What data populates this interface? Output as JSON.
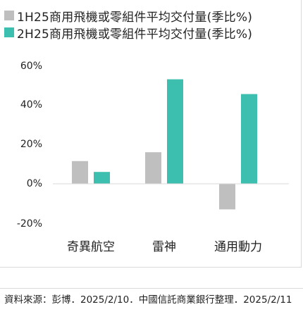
{
  "legend": [
    {
      "label": "1H25商用飛機或零組件平均交付量(季比%)",
      "color": "#BFBFBF"
    },
    {
      "label": "2H25商用飛機或零組件平均交付量(季比%)",
      "color": "#3CBFAE"
    }
  ],
  "chart_data": {
    "type": "bar",
    "categories": [
      "奇異航空",
      "雷神",
      "通用動力"
    ],
    "series": [
      {
        "name": "1H25商用飛機或零組件平均交付量(季比%)",
        "values": [
          11.5,
          16,
          -13
        ],
        "color": "#BFBFBF"
      },
      {
        "name": "2H25商用飛機或零組件平均交付量(季比%)",
        "values": [
          6,
          53,
          45.5
        ],
        "color": "#3CBFAE"
      }
    ],
    "y_ticks": [
      "60%",
      "40%",
      "20%",
      "0%",
      "-20%"
    ],
    "ylim": [
      -20,
      60
    ],
    "grid": false
  },
  "footer": {
    "source": "資料來源：彭博．2025/2/10．中國信託商業銀行整理．2025/2/11"
  }
}
